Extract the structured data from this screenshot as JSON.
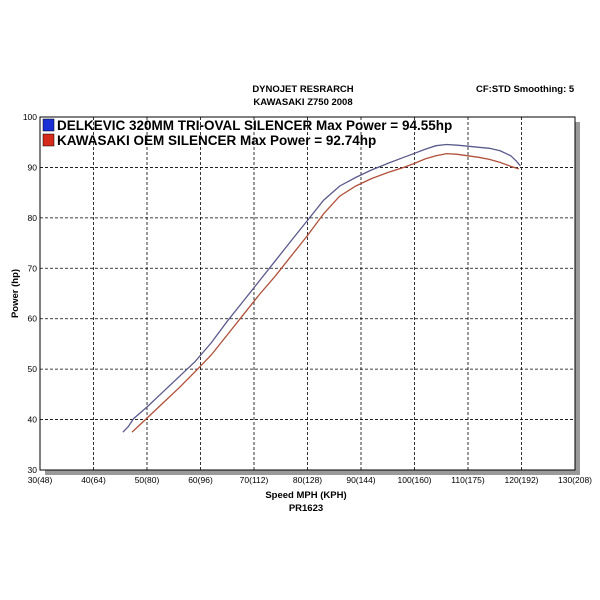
{
  "header": {
    "title_line1": "DYNOJET RESRARCH",
    "title_line2": "KAWASAKI Z750 2008",
    "settings": "CF:STD Smoothing: 5"
  },
  "chart_data": {
    "type": "line",
    "title": "DYNOJET RESRARCH",
    "subtitle": "KAWASAKI Z750 2008",
    "xlabel": "Speed MPH (KPH)",
    "xlabel2": "PR1623",
    "ylabel": "Power (hp)",
    "xlim": [
      30,
      130
    ],
    "ylim": [
      30,
      100
    ],
    "grid": true,
    "legend_position": "top-left",
    "x_ticks": [
      {
        "value": 30,
        "label": "30(48)"
      },
      {
        "value": 40,
        "label": "40(64)"
      },
      {
        "value": 50,
        "label": "50(80)"
      },
      {
        "value": 60,
        "label": "60(96)"
      },
      {
        "value": 70,
        "label": "70(112)"
      },
      {
        "value": 80,
        "label": "80(128)"
      },
      {
        "value": 90,
        "label": "90(144)"
      },
      {
        "value": 100,
        "label": "100(160)"
      },
      {
        "value": 110,
        "label": "110(175)"
      },
      {
        "value": 120,
        "label": "120(192)"
      },
      {
        "value": 130,
        "label": "130(208)"
      }
    ],
    "y_ticks": [
      {
        "value": 30,
        "label": "30"
      },
      {
        "value": 40,
        "label": "40"
      },
      {
        "value": 50,
        "label": "50"
      },
      {
        "value": 60,
        "label": "60"
      },
      {
        "value": 70,
        "label": "70"
      },
      {
        "value": 80,
        "label": "80"
      },
      {
        "value": 90,
        "label": "90"
      },
      {
        "value": 100,
        "label": "100"
      }
    ],
    "series": [
      {
        "name": "DELKEVIC 320MM TRI-OVAL SILENCER  Max Power = 94.55hp",
        "color": "#5a5a8c",
        "swatch_color": "#1a2fd6",
        "points": [
          [
            45.5,
            37.5
          ],
          [
            46.5,
            38.6
          ],
          [
            47.5,
            40.2
          ],
          [
            50,
            42.5
          ],
          [
            53,
            45.5
          ],
          [
            56,
            48.5
          ],
          [
            59,
            51.5
          ],
          [
            62,
            55.2
          ],
          [
            65,
            59.5
          ],
          [
            68,
            63.5
          ],
          [
            71,
            67.5
          ],
          [
            74,
            71.5
          ],
          [
            77,
            75.5
          ],
          [
            80,
            79.5
          ],
          [
            83,
            83.5
          ],
          [
            86,
            86.3
          ],
          [
            89,
            88.0
          ],
          [
            92,
            89.5
          ],
          [
            95,
            90.8
          ],
          [
            98,
            92.0
          ],
          [
            100,
            92.8
          ],
          [
            102,
            93.6
          ],
          [
            104,
            94.3
          ],
          [
            106,
            94.55
          ],
          [
            108,
            94.4
          ],
          [
            110,
            94.2
          ],
          [
            112,
            94.0
          ],
          [
            114,
            93.8
          ],
          [
            116,
            93.3
          ],
          [
            118,
            92.3
          ],
          [
            119,
            91.3
          ],
          [
            119.8,
            90.3
          ]
        ]
      },
      {
        "name": "KAWASAKI OEM SILENCER Max Power = 92.74hp",
        "color": "#b0503a",
        "swatch_color": "#d62a1a",
        "points": [
          [
            47.2,
            37.5
          ],
          [
            48.5,
            38.8
          ],
          [
            50,
            40.3
          ],
          [
            53,
            43.3
          ],
          [
            56,
            46.3
          ],
          [
            59,
            49.5
          ],
          [
            62,
            52.8
          ],
          [
            65,
            56.8
          ],
          [
            68,
            60.8
          ],
          [
            71,
            64.8
          ],
          [
            74,
            68.5
          ],
          [
            77,
            72.5
          ],
          [
            80,
            76.5
          ],
          [
            83,
            80.8
          ],
          [
            86,
            84.3
          ],
          [
            89,
            86.3
          ],
          [
            92,
            87.8
          ],
          [
            95,
            89.0
          ],
          [
            98,
            90.0
          ],
          [
            100,
            90.8
          ],
          [
            102,
            91.7
          ],
          [
            104,
            92.3
          ],
          [
            106,
            92.74
          ],
          [
            108,
            92.6
          ],
          [
            110,
            92.3
          ],
          [
            112,
            92.0
          ],
          [
            114,
            91.6
          ],
          [
            116,
            91.0
          ],
          [
            118,
            90.2
          ],
          [
            119.5,
            89.7
          ]
        ]
      }
    ]
  }
}
